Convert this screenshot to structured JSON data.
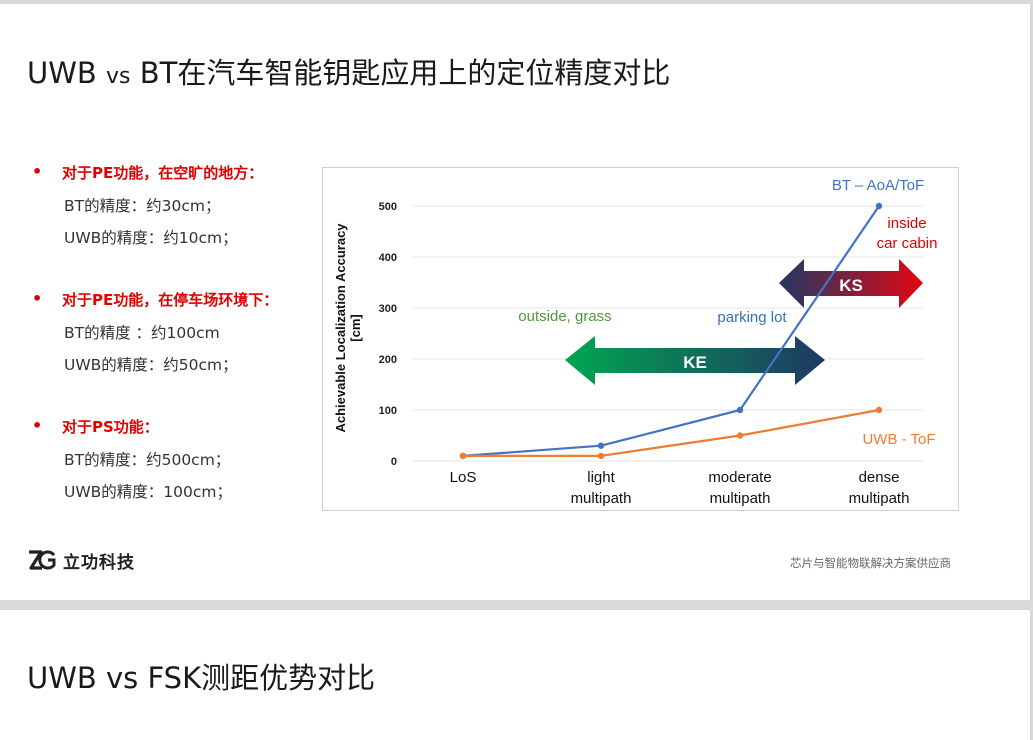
{
  "slide1": {
    "title_pre": "UWB ",
    "title_vs": "vs",
    "title_post": " BT在汽车智能钥匙应用上的定位精度对比",
    "bullets": [
      {
        "heading": "对于PE功能，在空旷的地方：",
        "lines": [
          "BT的精度：约30cm；",
          "UWB的精度：约10cm；"
        ]
      },
      {
        "heading": "对于PE功能，在停车场环境下：",
        "lines": [
          "BT的精度 ：约100cm",
          "UWB的精度：约50cm；"
        ]
      },
      {
        "heading": "对于PS功能：",
        "lines": [
          "BT的精度：约500cm；",
          "UWB的精度：100cm；"
        ]
      }
    ],
    "bullet_symbol": "•",
    "logo_text": "立功科技",
    "tagline": "芯片与智能物联解决方案供应商"
  },
  "slide2": {
    "title": "UWB vs FSK测距优势对比"
  },
  "chart_data": {
    "type": "line",
    "categories": [
      "LoS",
      "light\nmultipath",
      "moderate\nmultipath",
      "dense\nmultipath"
    ],
    "series": [
      {
        "name": "BT – AoA/ToF",
        "color": "#4472c4",
        "values": [
          10,
          30,
          100,
          500
        ]
      },
      {
        "name": "UWB - ToF",
        "color": "#ed7d31",
        "values": [
          10,
          10,
          50,
          100
        ]
      }
    ],
    "ylabel": "Achievable Localization Accuracy\n[cm]",
    "yticks": [
      0,
      100,
      200,
      300,
      400,
      500
    ],
    "ylim": [
      0,
      500
    ],
    "grid": true,
    "annotations": {
      "outside": {
        "text": "outside, grass",
        "color": "#4e9a3a"
      },
      "parking": {
        "text": "parking lot",
        "color": "#2e75b6"
      },
      "inside": {
        "text": "inside\ncar cabin",
        "color": "#e00000"
      },
      "ke": {
        "text": "KE"
      },
      "ks": {
        "text": "KS"
      }
    }
  }
}
